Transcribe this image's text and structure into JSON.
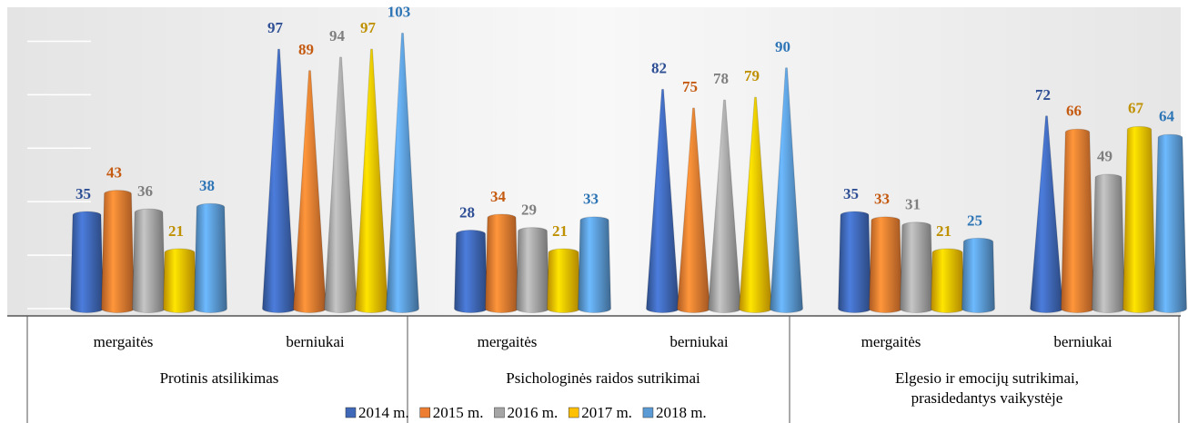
{
  "chart_data": {
    "type": "cone",
    "categories": [
      "mergaitės",
      "berniukai",
      "mergaitės",
      "berniukai",
      "mergaitės",
      "berniukai"
    ],
    "category_groups": [
      [
        "Protinis atsilikimas"
      ],
      [
        "Psichologinės raidos sutrikimai"
      ],
      [
        "Elgesio ir emocijų sutrikimai,",
        "prasidedantys vaikystėje"
      ]
    ],
    "series": [
      {
        "name": "2014 m.",
        "color": "#3f68b8",
        "label_color": "#2f4f95",
        "values": [
          35,
          97,
          28,
          82,
          35,
          72
        ]
      },
      {
        "name": "2015 m.",
        "color": "#ed7d31",
        "label_color": "#c55a11",
        "values": [
          43,
          89,
          34,
          75,
          33,
          66
        ]
      },
      {
        "name": "2016 m.",
        "color": "#a5a5a5",
        "label_color": "#7f7f7f",
        "values": [
          36,
          94,
          29,
          78,
          31,
          49
        ]
      },
      {
        "name": "2017 m.",
        "color": "#ffc000",
        "label_color": "#bf9000",
        "values": [
          21,
          97,
          21,
          79,
          21,
          67
        ]
      },
      {
        "name": "2018 m.",
        "color": "#5b9bd5",
        "label_color": "#2e75b6",
        "values": [
          38,
          103,
          33,
          90,
          25,
          64
        ]
      }
    ],
    "ylim": [
      0,
      110
    ],
    "yticks": [
      0,
      20,
      40,
      60,
      80,
      100
    ],
    "grid": true
  }
}
